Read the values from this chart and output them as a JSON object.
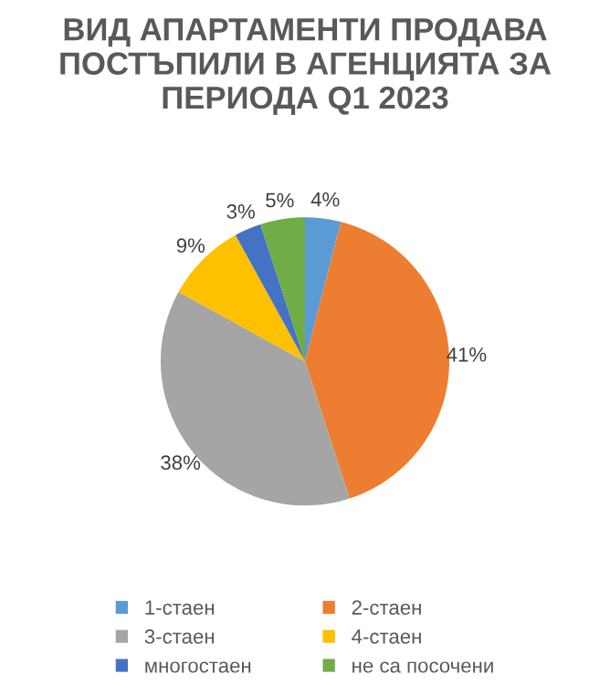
{
  "chart_data": {
    "type": "pie",
    "title": "ВИД АПАРТАМЕНТИ ПРОДАВА ПОСТЪПИЛИ В АГЕНЦИЯТА ЗА ПЕРИОДА Q1 2023",
    "categories": [
      "1-стаен",
      "2-стаен",
      "3-стаен",
      "4-стаен",
      "многостаен",
      "не са посочени"
    ],
    "values": [
      4,
      41,
      38,
      9,
      3,
      5
    ],
    "colors": [
      "#5b9bd5",
      "#ed7d31",
      "#a5a5a5",
      "#ffc000",
      "#4472c4",
      "#70ad47"
    ],
    "value_labels": [
      "4%",
      "41%",
      "38%",
      "9%",
      "3%",
      "5%"
    ],
    "legend": "bottom"
  }
}
